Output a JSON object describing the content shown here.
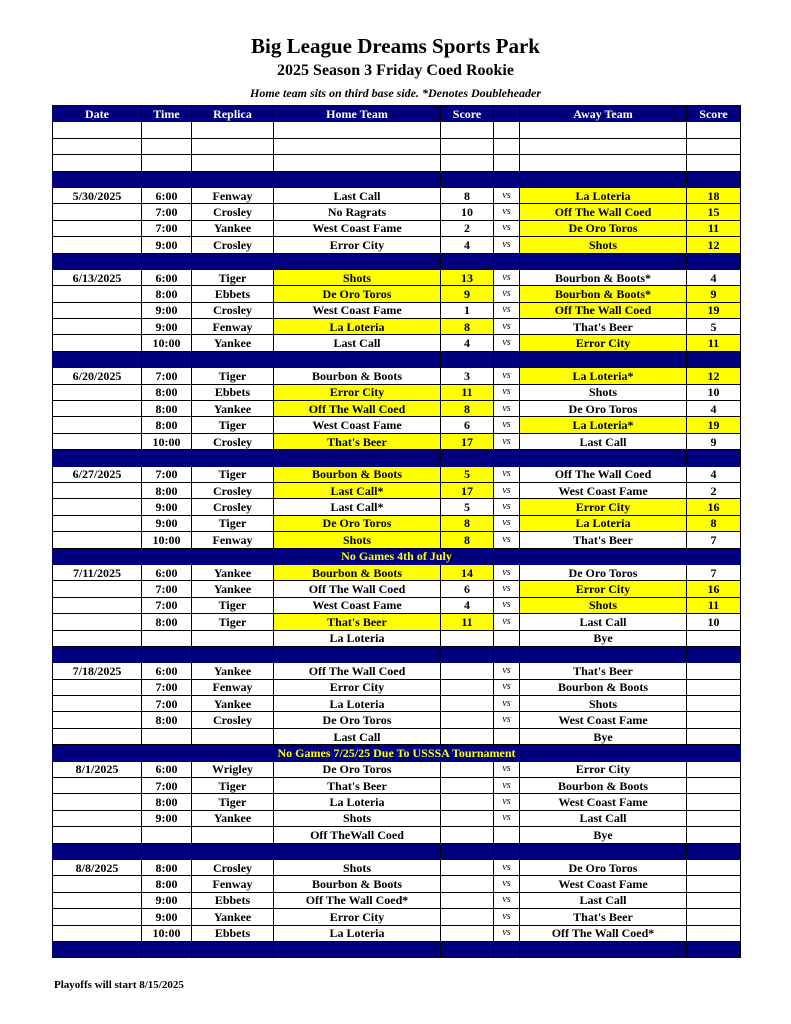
{
  "title": "Big League Dreams Sports Park",
  "subtitle": "2025 Season 3 Friday Coed Rookie",
  "note": "Home team sits on third base side.  *Denotes Doubleheader",
  "columns": [
    "Date",
    "Time",
    "Replica",
    "Home Team",
    "Score",
    "",
    "Away Team",
    "Score"
  ],
  "vs_label": "vs",
  "colors": {
    "header_bg": "#00007f",
    "winner_highlight": "#ffff00",
    "note_text": "#ffff00"
  },
  "rows": [
    {
      "type": "empty"
    },
    {
      "type": "empty"
    },
    {
      "type": "empty"
    },
    {
      "type": "blue"
    },
    {
      "date": "5/30/2025",
      "time": "6:00",
      "replica": "Fenway",
      "home": "Last Call",
      "hs": "8",
      "away": "La Loteria",
      "as": "18",
      "win": "away"
    },
    {
      "date": "",
      "time": "7:00",
      "replica": "Crosley",
      "home": "No Ragrats",
      "hs": "10",
      "away": "Off The Wall Coed",
      "as": "15",
      "win": "away"
    },
    {
      "date": "",
      "time": "7:00",
      "replica": "Yankee",
      "home": "West Coast Fame",
      "hs": "2",
      "away": "De Oro Toros",
      "as": "11",
      "win": "away"
    },
    {
      "date": "",
      "time": "9:00",
      "replica": "Crosley",
      "home": "Error City",
      "hs": "4",
      "away": "Shots",
      "as": "12",
      "win": "away"
    },
    {
      "type": "blue"
    },
    {
      "date": "6/13/2025",
      "time": "6:00",
      "replica": "Tiger",
      "home": "Shots",
      "hs": "13",
      "away": "Bourbon & Boots*",
      "as": "4",
      "win": "home"
    },
    {
      "date": "",
      "time": "8:00",
      "replica": "Ebbets",
      "home": "De Oro Toros",
      "hs": "9",
      "away": "Bourbon & Boots*",
      "as": "9",
      "win": "tie"
    },
    {
      "date": "",
      "time": "9:00",
      "replica": "Crosley",
      "home": "West Coast Fame",
      "hs": "1",
      "away": "Off The Wall Coed",
      "as": "19",
      "win": "away"
    },
    {
      "date": "",
      "time": "9:00",
      "replica": "Fenway",
      "home": "La Loteria",
      "hs": "8",
      "away": "That's Beer",
      "as": "5",
      "win": "home"
    },
    {
      "date": "",
      "time": "10:00",
      "replica": "Yankee",
      "home": "Last Call",
      "hs": "4",
      "away": "Error City",
      "as": "11",
      "win": "away"
    },
    {
      "type": "blue"
    },
    {
      "date": "6/20/2025",
      "time": "7:00",
      "replica": "Tiger",
      "home": "Bourbon & Boots",
      "hs": "3",
      "away": "La Loteria*",
      "as": "12",
      "win": "away"
    },
    {
      "date": "",
      "time": "8:00",
      "replica": "Ebbets",
      "home": "Error City",
      "hs": "11",
      "away": "Shots",
      "as": "10",
      "win": "home"
    },
    {
      "date": "",
      "time": "8:00",
      "replica": "Yankee",
      "home": "Off The Wall Coed",
      "hs": "8",
      "away": "De Oro Toros",
      "as": "4",
      "win": "home"
    },
    {
      "date": "",
      "time": "8:00",
      "replica": "Tiger",
      "home": "West Coast Fame",
      "hs": "6",
      "away": "La Loteria*",
      "as": "19",
      "win": "away"
    },
    {
      "date": "",
      "time": "10:00",
      "replica": "Crosley",
      "home": "That's Beer",
      "hs": "17",
      "away": "Last Call",
      "as": "9",
      "win": "home"
    },
    {
      "type": "blue"
    },
    {
      "date": "6/27/2025",
      "time": "7:00",
      "replica": "Tiger",
      "home": "Bourbon & Boots",
      "hs": "5",
      "away": "Off The Wall Coed",
      "as": "4",
      "win": "home"
    },
    {
      "date": "",
      "time": "8:00",
      "replica": "Crosley",
      "home": "Last Call*",
      "hs": "17",
      "away": "West Coast Fame",
      "as": "2",
      "win": "home"
    },
    {
      "date": "",
      "time": "9:00",
      "replica": "Crosley",
      "home": "Last Call*",
      "hs": "5",
      "away": "Error City",
      "as": "16",
      "win": "away"
    },
    {
      "date": "",
      "time": "9:00",
      "replica": "Tiger",
      "home": "De Oro Toros",
      "hs": "8",
      "away": "La Loteria",
      "as": "8",
      "win": "tie"
    },
    {
      "date": "",
      "time": "10:00",
      "replica": "Fenway",
      "home": "Shots",
      "hs": "8",
      "away": "That's Beer",
      "as": "7",
      "win": "home"
    },
    {
      "type": "note",
      "text": "No Games 4th of July"
    },
    {
      "date": "7/11/2025",
      "time": "6:00",
      "replica": "Yankee",
      "home": "Bourbon & Boots",
      "hs": "14",
      "away": "De Oro Toros",
      "as": "7",
      "win": "home"
    },
    {
      "date": "",
      "time": "7:00",
      "replica": "Yankee",
      "home": "Off The Wall Coed",
      "hs": "6",
      "away": "Error City",
      "as": "16",
      "win": "away"
    },
    {
      "date": "",
      "time": "7:00",
      "replica": "Tiger",
      "home": "West Coast Fame",
      "hs": "4",
      "away": "Shots",
      "as": "11",
      "win": "away"
    },
    {
      "date": "",
      "time": "8:00",
      "replica": "Tiger",
      "home": "That's Beer",
      "hs": "11",
      "away": "Last Call",
      "as": "10",
      "win": "home"
    },
    {
      "date": "",
      "time": "",
      "replica": "",
      "home": "La Loteria",
      "hs": "",
      "away": "Bye",
      "as": "",
      "win": "",
      "novs": true
    },
    {
      "type": "blue"
    },
    {
      "date": "7/18/2025",
      "time": "6:00",
      "replica": "Yankee",
      "home": "Off The Wall Coed",
      "hs": "",
      "away": "That's Beer",
      "as": "",
      "win": ""
    },
    {
      "date": "",
      "time": "7:00",
      "replica": "Fenway",
      "home": "Error City",
      "hs": "",
      "away": "Bourbon & Boots",
      "as": "",
      "win": ""
    },
    {
      "date": "",
      "time": "7:00",
      "replica": "Yankee",
      "home": "La Loteria",
      "hs": "",
      "away": "Shots",
      "as": "",
      "win": ""
    },
    {
      "date": "",
      "time": "8:00",
      "replica": "Crosley",
      "home": "De Oro Toros",
      "hs": "",
      "away": "West Coast Fame",
      "as": "",
      "win": ""
    },
    {
      "date": "",
      "time": "",
      "replica": "",
      "home": "Last Call",
      "hs": "",
      "away": "Bye",
      "as": "",
      "win": "",
      "novs": true
    },
    {
      "type": "note",
      "text": "No Games 7/25/25 Due To USSSA Tournament"
    },
    {
      "date": "8/1/2025",
      "time": "6:00",
      "replica": "Wrigley",
      "home": "De Oro Toros",
      "hs": "",
      "away": "Error City",
      "as": "",
      "win": ""
    },
    {
      "date": "",
      "time": "7:00",
      "replica": "Tiger",
      "home": "That's Beer",
      "hs": "",
      "away": "Bourbon & Boots",
      "as": "",
      "win": ""
    },
    {
      "date": "",
      "time": "8:00",
      "replica": "Tiger",
      "home": "La Loteria",
      "hs": "",
      "away": "West Coast Fame",
      "as": "",
      "win": ""
    },
    {
      "date": "",
      "time": "9:00",
      "replica": "Yankee",
      "home": "Shots",
      "hs": "",
      "away": "Last Call",
      "as": "",
      "win": ""
    },
    {
      "date": "",
      "time": "",
      "replica": "",
      "home": "Off TheWall Coed",
      "hs": "",
      "away": "Bye",
      "as": "",
      "win": "",
      "novs": true
    },
    {
      "type": "blue"
    },
    {
      "date": "8/8/2025",
      "time": "8:00",
      "replica": "Crosley",
      "home": "Shots",
      "hs": "",
      "away": "De Oro Toros",
      "as": "",
      "win": ""
    },
    {
      "date": "",
      "time": "8:00",
      "replica": "Fenway",
      "home": "Bourbon & Boots",
      "hs": "",
      "away": "West Coast Fame",
      "as": "",
      "win": ""
    },
    {
      "date": "",
      "time": "9:00",
      "replica": "Ebbets",
      "home": "Off The Wall Coed*",
      "hs": "",
      "away": "Last Call",
      "as": "",
      "win": ""
    },
    {
      "date": "",
      "time": "9:00",
      "replica": "Yankee",
      "home": "Error City",
      "hs": "",
      "away": "That's Beer",
      "as": "",
      "win": ""
    },
    {
      "date": "",
      "time": "10:00",
      "replica": "Ebbets",
      "home": "La Loteria",
      "hs": "",
      "away": "Off The Wall Coed*",
      "as": "",
      "win": ""
    },
    {
      "type": "blue"
    }
  ],
  "footer": "Playoffs will start 8/15/2025"
}
